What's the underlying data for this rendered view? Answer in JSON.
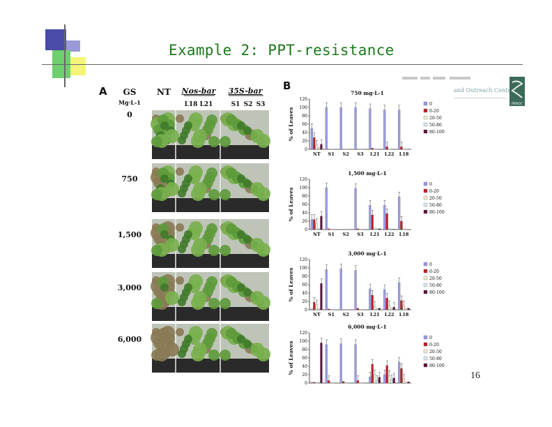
{
  "slide": {
    "title": "Example 2: PPT-resistance",
    "page_number": "16",
    "banner": {
      "faded_text": "and Outreach Center",
      "logo_text": "PRROC"
    }
  },
  "panel_a": {
    "label": "A",
    "gs_header": "GS",
    "gs_unit": "Mg·L-1",
    "nt_header": "NT",
    "nos_bar_header": "Nos-bar",
    "s35_bar_header": "35S-bar",
    "nos_lines": [
      "L18",
      "L21"
    ],
    "s35_lines": [
      "S1",
      "S2",
      "S3"
    ],
    "doses": [
      "0",
      "750",
      "1,500",
      "3,000",
      "6,000"
    ]
  },
  "chart_data": [
    {
      "type": "bar",
      "panel_label": "B",
      "title": "750 mg·L-1",
      "ylabel": "% of Leaves",
      "ylim": [
        0,
        120
      ],
      "yticks": [
        0,
        20,
        40,
        60,
        80,
        100,
        120
      ],
      "categories": [
        "NT",
        "S1",
        "S2",
        "S3",
        "L21",
        "L22",
        "L18"
      ],
      "legend": [
        "0",
        "0-20",
        "20-50",
        "50-80",
        "80-100"
      ],
      "colors": [
        "#9b9be6",
        "#c0202a",
        "#f2ecd6",
        "#d8eaf4",
        "#5a1640"
      ],
      "series": [
        {
          "name": "0",
          "values": [
            50,
            100,
            100,
            100,
            97,
            94,
            94
          ]
        },
        {
          "name": "0-20",
          "values": [
            28,
            0,
            0,
            0,
            3,
            6,
            6
          ]
        },
        {
          "name": "20-50",
          "values": [
            10,
            0,
            0,
            0,
            0,
            0,
            0
          ]
        },
        {
          "name": "50-80",
          "values": [
            5,
            0,
            0,
            0,
            0,
            0,
            0
          ]
        },
        {
          "name": "80-100",
          "values": [
            12,
            0,
            0,
            0,
            0,
            0,
            0
          ]
        }
      ]
    },
    {
      "type": "bar",
      "title": "1,500 mg·L-1",
      "ylabel": "% of Leaves",
      "ylim": [
        0,
        120
      ],
      "yticks": [
        0,
        20,
        40,
        60,
        80,
        100,
        120
      ],
      "categories": [
        "NT",
        "S1",
        "S2",
        "S3",
        "L21",
        "L22",
        "L18"
      ],
      "legend": [
        "0",
        "0-20",
        "20-50",
        "50-80",
        "80-100"
      ],
      "colors": [
        "#9b9be6",
        "#c0202a",
        "#f2ecd6",
        "#d8eaf4",
        "#5a1640"
      ],
      "series": [
        {
          "name": "0",
          "values": [
            24,
            100,
            0,
            98,
            58,
            58,
            78
          ]
        },
        {
          "name": "0-20",
          "values": [
            24,
            2,
            0,
            2,
            35,
            38,
            20
          ]
        },
        {
          "name": "20-50",
          "values": [
            15,
            0,
            0,
            0,
            4,
            3,
            2
          ]
        },
        {
          "name": "50-80",
          "values": [
            3,
            0,
            0,
            0,
            2,
            1,
            0
          ]
        },
        {
          "name": "80-100",
          "values": [
            32,
            0,
            0,
            0,
            2,
            1,
            0
          ]
        }
      ]
    },
    {
      "type": "bar",
      "title": "3,000 mg·L-1",
      "ylabel": "% of Leaves",
      "ylim": [
        0,
        120
      ],
      "yticks": [
        0,
        20,
        40,
        60,
        80,
        100,
        120
      ],
      "categories": [
        "NT",
        "S1",
        "S2",
        "S3",
        "L21",
        "L22",
        "L18"
      ],
      "legend": [
        "0",
        "0-20",
        "20-50",
        "50-80",
        "80-100"
      ],
      "colors": [
        "#9b9be6",
        "#c0202a",
        "#f2ecd6",
        "#d8eaf4",
        "#5a1640"
      ],
      "series": [
        {
          "name": "0",
          "values": [
            2,
            96,
            98,
            94,
            50,
            48,
            65
          ]
        },
        {
          "name": "0-20",
          "values": [
            18,
            2,
            0,
            4,
            35,
            28,
            22
          ]
        },
        {
          "name": "20-50",
          "values": [
            12,
            0,
            0,
            0,
            8,
            10,
            10
          ]
        },
        {
          "name": "50-80",
          "values": [
            3,
            0,
            0,
            0,
            3,
            5,
            3
          ]
        },
        {
          "name": "80-100",
          "values": [
            63,
            0,
            0,
            0,
            4,
            6,
            4
          ]
        }
      ]
    },
    {
      "type": "bar",
      "title": "6,000 mg·L-1",
      "ylabel": "% of Leaves",
      "ylim": [
        0,
        120
      ],
      "yticks": [
        0,
        20,
        40,
        60,
        80,
        100,
        120
      ],
      "categories": [
        "NT",
        "S1",
        "S2",
        "S3",
        "L21",
        "L22",
        "L18"
      ],
      "legend": [
        "0",
        "0-20",
        "20-50",
        "50-80",
        "80-100"
      ],
      "colors": [
        "#9b9be6",
        "#c0202a",
        "#f2ecd6",
        "#d8eaf4",
        "#5a1640"
      ],
      "series": [
        {
          "name": "0",
          "values": [
            2,
            92,
            94,
            92,
            15,
            20,
            50
          ]
        },
        {
          "name": "0-20",
          "values": [
            2,
            6,
            4,
            6,
            45,
            42,
            35
          ]
        },
        {
          "name": "20-50",
          "values": [
            0,
            0,
            0,
            0,
            20,
            18,
            10
          ]
        },
        {
          "name": "50-80",
          "values": [
            2,
            0,
            0,
            0,
            6,
            8,
            2
          ]
        },
        {
          "name": "80-100",
          "values": [
            96,
            0,
            0,
            0,
            14,
            12,
            3
          ]
        }
      ]
    }
  ]
}
